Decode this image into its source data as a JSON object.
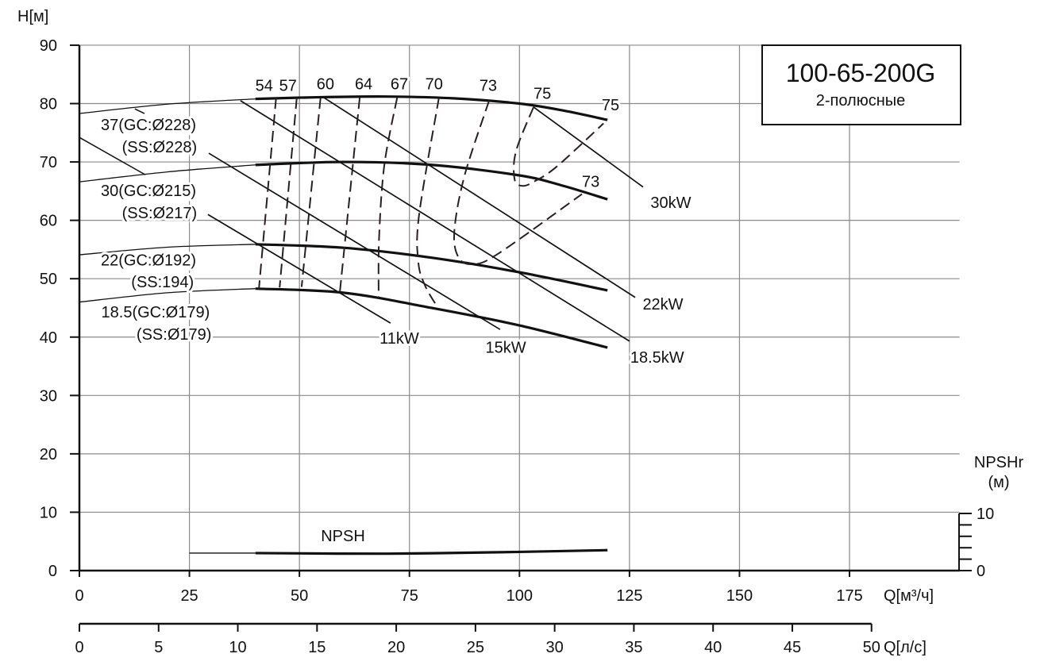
{
  "chart_data": {
    "type": "line",
    "title": "100-65-200G",
    "subtitle": "2-полюсные",
    "ylabel": "H[м]",
    "xlabel": "Q[м³/ч]",
    "xlabel2": "Q[л/с]",
    "y2label": "NPSHr",
    "y2unit": "(м)",
    "xlim": [
      0,
      200
    ],
    "ylim": [
      0,
      90
    ],
    "grid": true,
    "xticks": [
      0,
      25,
      50,
      75,
      100,
      125,
      150,
      175
    ],
    "yticks": [
      0,
      10,
      20,
      30,
      40,
      50,
      60,
      70,
      80,
      90
    ],
    "x2ticks": [
      0,
      5,
      10,
      15,
      20,
      25,
      30,
      35,
      40,
      45,
      50
    ],
    "y2ticks": [
      "0",
      "10"
    ],
    "head_curves": [
      {
        "name": "37",
        "labels": [
          "37(GC:Ø228)",
          "(SS:Ø228)"
        ],
        "label_at": [
          [
            15.7,
            76.4
          ],
          [
            18.2,
            72.6
          ]
        ],
        "thick_from": 40,
        "points": [
          [
            0,
            78.3
          ],
          [
            20,
            79.9
          ],
          [
            40,
            80.8
          ],
          [
            55,
            81.1
          ],
          [
            70,
            81.2
          ],
          [
            85,
            80.9
          ],
          [
            100,
            80.0
          ],
          [
            110,
            78.8
          ],
          [
            120,
            77.2
          ]
        ]
      },
      {
        "name": "30",
        "labels": [
          "30(GC:Ø215)",
          "(SS:Ø217)"
        ],
        "label_at": [
          [
            15.7,
            65.1
          ],
          [
            18.2,
            61.3
          ]
        ],
        "thick_from": 40,
        "points": [
          [
            0,
            66.6
          ],
          [
            20,
            68.3
          ],
          [
            40,
            69.5
          ],
          [
            60,
            70.0
          ],
          [
            80,
            69.5
          ],
          [
            100,
            67.7
          ],
          [
            110,
            65.9
          ],
          [
            120,
            63.6
          ]
        ]
      },
      {
        "name": "22",
        "labels": [
          "22(GC:Ø192)",
          "(SS:194)"
        ],
        "label_at": [
          [
            15.7,
            53.2
          ],
          [
            18.9,
            49.5
          ]
        ],
        "thick_from": 40,
        "points": [
          [
            0,
            54.1
          ],
          [
            20,
            55.4
          ],
          [
            40,
            55.9
          ],
          [
            60,
            55.3
          ],
          [
            80,
            53.6
          ],
          [
            100,
            51.1
          ],
          [
            120,
            48.0
          ]
        ]
      },
      {
        "name": "18.5",
        "labels": [
          "18.5(GC:Ø179)",
          "(SS:Ø179)"
        ],
        "label_at": [
          [
            17.3,
            44.3
          ],
          [
            21.5,
            40.5
          ]
        ],
        "thick_from": 40,
        "points": [
          [
            0,
            46.0
          ],
          [
            20,
            47.6
          ],
          [
            40,
            48.3
          ],
          [
            60,
            47.6
          ],
          [
            80,
            45.0
          ],
          [
            100,
            42.0
          ],
          [
            120,
            38.2
          ]
        ]
      }
    ],
    "npsh_curve": {
      "label": "NPSH",
      "label_at": [
        59.9,
        6.0
      ],
      "thick_from": 40,
      "points": [
        [
          25,
          3.0
        ],
        [
          40,
          3.0
        ],
        [
          70,
          2.9
        ],
        [
          100,
          3.2
        ],
        [
          120,
          3.5
        ]
      ]
    },
    "power_lines": [
      {
        "label": "30kW",
        "label_at": [
          134.4,
          63.1
        ],
        "points": [
          [
            103.2,
            79.4
          ],
          [
            128.1,
            65.7
          ]
        ]
      },
      {
        "label": "22kW",
        "label_at": [
          132.6,
          45.7
        ],
        "points": [
          [
            55.6,
            81.0
          ],
          [
            126.3,
            46.8
          ]
        ]
      },
      {
        "label": "18.5kW",
        "label_at": [
          131.3,
          36.6
        ],
        "points": [
          [
            36.6,
            80.5
          ],
          [
            125.0,
            39.3
          ]
        ]
      },
      {
        "label": "15kW",
        "label_at": [
          96.9,
          38.3
        ],
        "points": [
          [
            29.4,
            71.5
          ],
          [
            95.6,
            41.3
          ]
        ]
      },
      {
        "label": "11kW",
        "label_at": [
          72.7,
          39.8
        ],
        "points": [
          [
            29.2,
            61.0
          ],
          [
            70.7,
            42.4
          ]
        ]
      }
    ],
    "leader_lines": [
      [
        [
          0,
          74.2
        ],
        [
          15.0,
          67.8
        ]
      ],
      [
        [
          12.6,
          79.1
        ],
        [
          14.8,
          78.3
        ]
      ]
    ],
    "efficiency_curves": [
      {
        "label": "54",
        "label_at": [
          42.0,
          83.1
        ],
        "points": [
          [
            44.7,
            81.0
          ],
          [
            40.8,
            48.3
          ]
        ]
      },
      {
        "label": "57",
        "label_at": [
          47.4,
          83.1
        ],
        "points": [
          [
            49.4,
            81.0
          ],
          [
            45.5,
            48.5
          ]
        ]
      },
      {
        "label": "60",
        "label_at": [
          55.9,
          83.4
        ],
        "points": [
          [
            54.8,
            81.0
          ],
          [
            50.5,
            48.6
          ]
        ]
      },
      {
        "label": "64",
        "label_at": [
          64.6,
          83.4
        ],
        "points": [
          [
            63.7,
            81.0
          ],
          [
            59.2,
            47.8
          ]
        ]
      },
      {
        "label": "67",
        "label_at": [
          72.7,
          83.4
        ],
        "points": [
          [
            72.2,
            81.0
          ],
          [
            69.3,
            69.5
          ],
          [
            68.1,
            57.0
          ],
          [
            68.0,
            46.7
          ]
        ]
      },
      {
        "label": "70",
        "label_at": [
          80.6,
          83.4
        ],
        "points": [
          [
            81.7,
            81.0
          ],
          [
            77.2,
            61.0
          ],
          [
            77.0,
            53.0
          ],
          [
            78.5,
            48.9
          ],
          [
            81.4,
            45.1
          ]
        ]
      },
      {
        "label": "73",
        "label_at": [
          92.9,
          83.1
        ],
        "label2": "73",
        "label2_at": [
          116.2,
          66.7
        ],
        "points": [
          [
            93.1,
            80.5
          ],
          [
            87.5,
            67.6
          ],
          [
            85.2,
            58.1
          ],
          [
            86.2,
            53.6
          ],
          [
            89.5,
            52.5
          ],
          [
            95.2,
            54.3
          ],
          [
            114.2,
            64.5
          ]
        ]
      },
      {
        "label": "75",
        "label_at": [
          105.2,
          81.8
        ],
        "label2": "75",
        "label2_at": [
          120.7,
          79.8
        ],
        "points": [
          [
            103.2,
            79.4
          ],
          [
            99.2,
            71.8
          ],
          [
            98.9,
            67.0
          ],
          [
            100.7,
            65.9
          ],
          [
            103.2,
            66.6
          ],
          [
            108.3,
            69.1
          ],
          [
            119.1,
            76.6
          ]
        ]
      }
    ]
  },
  "colors": {
    "line": "#111111",
    "grid": "#8a8a8a",
    "dash": "#2a1f1f"
  }
}
